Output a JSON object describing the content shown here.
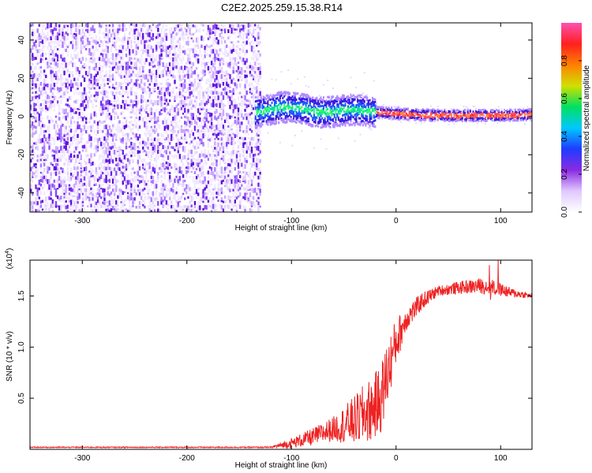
{
  "title": "C2E2.2025.259.15.38.R14",
  "chart_data": [
    {
      "type": "heatmap",
      "name": "spectrogram",
      "xlabel": "Height of straight line (km)",
      "ylabel": "Frequency (Hz)",
      "xlim": [
        -350,
        130
      ],
      "ylim": [
        -50,
        49
      ],
      "xticks": [
        -300,
        -200,
        -100,
        0,
        100
      ],
      "yticks": [
        -40,
        -20,
        0,
        20,
        40
      ],
      "x_tick_labels": [
        "-300",
        "-200",
        "-100",
        "0",
        "100"
      ],
      "y_tick_labels": [
        "-40",
        "-20",
        "0",
        "20",
        "40"
      ],
      "noise_region_x": [
        -350,
        -130
      ],
      "signal_track": [
        {
          "x": -140,
          "f": 1.5
        },
        {
          "x": -125,
          "f": 3.0
        },
        {
          "x": -110,
          "f": 5.0
        },
        {
          "x": -90,
          "f": 4.0
        },
        {
          "x": -75,
          "f": 2.0
        },
        {
          "x": -60,
          "f": 2.5
        },
        {
          "x": -45,
          "f": 3.5
        },
        {
          "x": -30,
          "f": 3.0
        },
        {
          "x": -15,
          "f": 2.0
        },
        {
          "x": 0,
          "f": 1.5
        },
        {
          "x": 20,
          "f": 0.8
        },
        {
          "x": 50,
          "f": 0.5
        },
        {
          "x": 80,
          "f": 0.5
        },
        {
          "x": 100,
          "f": 0.5
        },
        {
          "x": 130,
          "f": 1.0
        }
      ],
      "colorbar": {
        "label": "Normalized spectral amplitude",
        "range": [
          0,
          1
        ],
        "ticks": [
          0.0,
          0.2,
          0.4,
          0.6,
          0.8
        ],
        "tick_labels": [
          "0.0",
          "0.2",
          "0.4",
          "0.6",
          "0.8"
        ],
        "colors": [
          "#ffffff",
          "#e0c8ff",
          "#8a2be2",
          "#1e3cff",
          "#00c8ff",
          "#00e060",
          "#d0e000",
          "#ff8000",
          "#ff2020",
          "#ff50b0"
        ]
      }
    },
    {
      "type": "line",
      "name": "snr",
      "xlabel": "Height of straight line (km)",
      "ylabel": "SNR (10 * v/v)",
      "y_multiplier_label": "(x10",
      "y_multiplier_exp": "4",
      "y_multiplier_close": ")",
      "xlim": [
        -350,
        130
      ],
      "ylim": [
        0,
        1.85
      ],
      "xticks": [
        -300,
        -200,
        -100,
        0,
        100
      ],
      "yticks": [
        0.5,
        1.0,
        1.5
      ],
      "x_tick_labels": [
        "-300",
        "-200",
        "-100",
        "0",
        "100"
      ],
      "y_tick_labels": [
        "0.5",
        "1.0",
        "1.5"
      ],
      "color": "#ee2222",
      "trend": [
        {
          "x": -350,
          "y": 0.02
        },
        {
          "x": -120,
          "y": 0.02
        },
        {
          "x": -100,
          "y": 0.06
        },
        {
          "x": -80,
          "y": 0.12
        },
        {
          "x": -60,
          "y": 0.2
        },
        {
          "x": -40,
          "y": 0.28
        },
        {
          "x": -25,
          "y": 0.38
        },
        {
          "x": -15,
          "y": 0.48
        },
        {
          "x": -8,
          "y": 0.75
        },
        {
          "x": 0,
          "y": 1.05
        },
        {
          "x": 10,
          "y": 1.28
        },
        {
          "x": 25,
          "y": 1.45
        },
        {
          "x": 40,
          "y": 1.55
        },
        {
          "x": 60,
          "y": 1.58
        },
        {
          "x": 80,
          "y": 1.6
        },
        {
          "x": 95,
          "y": 1.58
        },
        {
          "x": 110,
          "y": 1.53
        },
        {
          "x": 130,
          "y": 1.5
        }
      ],
      "noise_amplitude": [
        {
          "x": -350,
          "a": 0.005
        },
        {
          "x": -120,
          "a": 0.006
        },
        {
          "x": -100,
          "a": 0.05
        },
        {
          "x": -60,
          "a": 0.12
        },
        {
          "x": -30,
          "a": 0.3
        },
        {
          "x": -10,
          "a": 0.35
        },
        {
          "x": 10,
          "a": 0.12
        },
        {
          "x": 40,
          "a": 0.05
        },
        {
          "x": 90,
          "a": 0.08
        },
        {
          "x": 130,
          "a": 0.02
        }
      ]
    }
  ]
}
